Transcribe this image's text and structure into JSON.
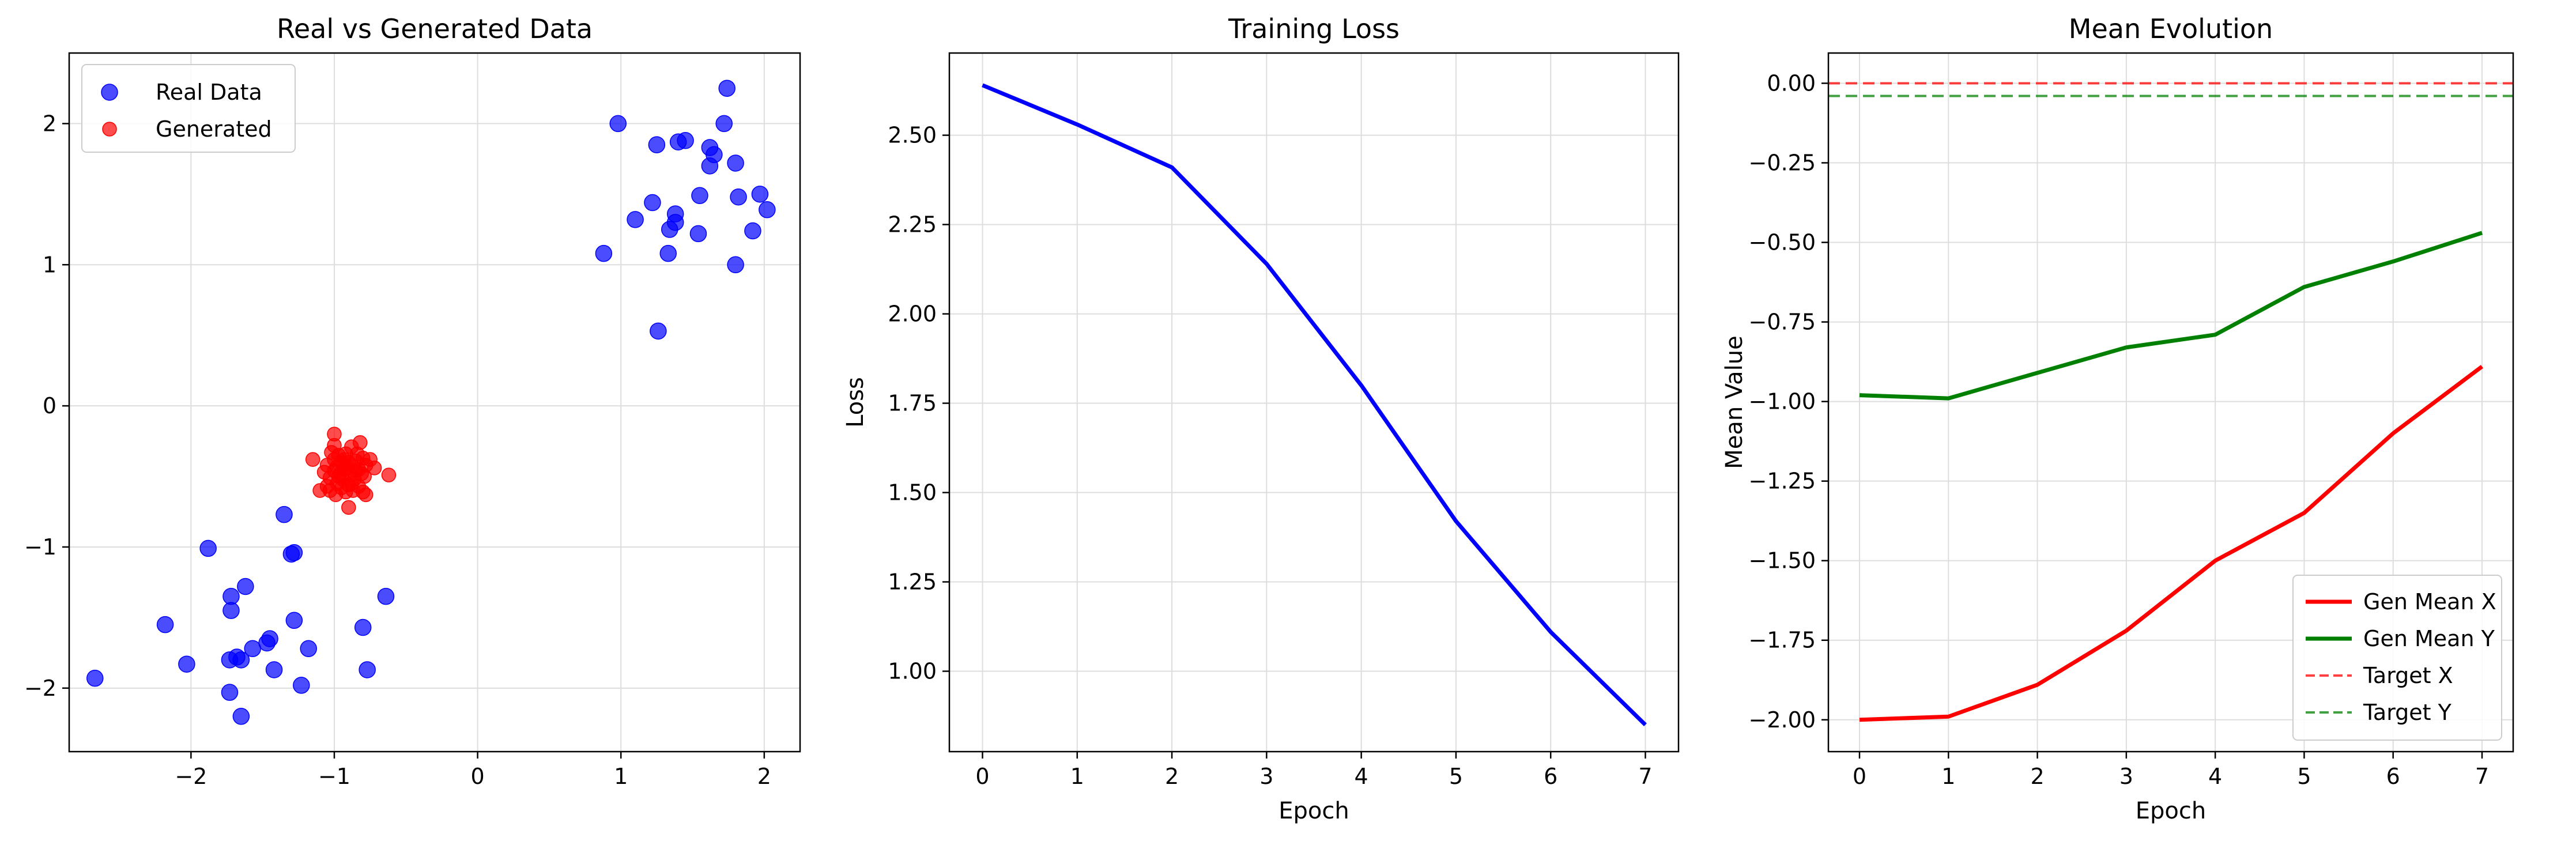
{
  "chart_data": [
    {
      "type": "scatter",
      "title": "Real vs Generated Data",
      "xlabel": "",
      "ylabel": "",
      "xlim": [
        -2.85,
        2.25
      ],
      "ylim": [
        -2.45,
        2.5
      ],
      "xticks": [
        -2,
        -1,
        0,
        1,
        2
      ],
      "yticks": [
        -2,
        -1,
        0,
        1,
        2
      ],
      "xtick_labels": [
        "−2",
        "−1",
        "0",
        "1",
        "2"
      ],
      "ytick_labels": [
        "−2",
        "−1",
        "0",
        "1",
        "2"
      ],
      "grid": true,
      "legend_position": "top-left",
      "series": [
        {
          "name": "Real Data",
          "color": "#0000ff",
          "points": [
            [
              0.98,
              2.0
            ],
            [
              1.74,
              2.25
            ],
            [
              1.72,
              2.0
            ],
            [
              1.4,
              1.87
            ],
            [
              1.45,
              1.88
            ],
            [
              1.25,
              1.85
            ],
            [
              1.62,
              1.83
            ],
            [
              1.65,
              1.78
            ],
            [
              1.62,
              1.7
            ],
            [
              1.8,
              1.72
            ],
            [
              1.22,
              1.44
            ],
            [
              1.38,
              1.36
            ],
            [
              1.55,
              1.49
            ],
            [
              1.82,
              1.48
            ],
            [
              1.97,
              1.5
            ],
            [
              2.02,
              1.39
            ],
            [
              1.1,
              1.32
            ],
            [
              1.38,
              1.3
            ],
            [
              1.34,
              1.25
            ],
            [
              1.54,
              1.22
            ],
            [
              1.92,
              1.24
            ],
            [
              0.88,
              1.08
            ],
            [
              1.33,
              1.08
            ],
            [
              1.8,
              1.0
            ],
            [
              1.26,
              0.53
            ],
            [
              -1.35,
              -0.77
            ],
            [
              -1.88,
              -1.01
            ],
            [
              -1.3,
              -1.05
            ],
            [
              -1.28,
              -1.04
            ],
            [
              -1.62,
              -1.28
            ],
            [
              -1.72,
              -1.35
            ],
            [
              -0.64,
              -1.35
            ],
            [
              -1.72,
              -1.45
            ],
            [
              -2.18,
              -1.55
            ],
            [
              -1.28,
              -1.52
            ],
            [
              -0.8,
              -1.57
            ],
            [
              -1.45,
              -1.65
            ],
            [
              -1.47,
              -1.68
            ],
            [
              -1.57,
              -1.72
            ],
            [
              -1.18,
              -1.72
            ],
            [
              -1.73,
              -1.8
            ],
            [
              -1.68,
              -1.78
            ],
            [
              -1.65,
              -1.8
            ],
            [
              -2.03,
              -1.83
            ],
            [
              -1.42,
              -1.87
            ],
            [
              -0.77,
              -1.87
            ],
            [
              -2.67,
              -1.93
            ],
            [
              -1.23,
              -1.98
            ],
            [
              -1.73,
              -2.03
            ],
            [
              -1.65,
              -2.2
            ]
          ]
        },
        {
          "name": "Generated",
          "color": "#ff0000",
          "points": [
            [
              -1.0,
              -0.2
            ],
            [
              -0.82,
              -0.26
            ],
            [
              -1.0,
              -0.28
            ],
            [
              -0.88,
              -0.29
            ],
            [
              -1.02,
              -0.33
            ],
            [
              -0.92,
              -0.34
            ],
            [
              -0.97,
              -0.35
            ],
            [
              -1.15,
              -0.38
            ],
            [
              -0.8,
              -0.37
            ],
            [
              -0.75,
              -0.38
            ],
            [
              -0.85,
              -0.39
            ],
            [
              -0.9,
              -0.4
            ],
            [
              -0.95,
              -0.4
            ],
            [
              -1.05,
              -0.42
            ],
            [
              -0.98,
              -0.43
            ],
            [
              -0.87,
              -0.43
            ],
            [
              -0.78,
              -0.42
            ],
            [
              -0.93,
              -0.45
            ],
            [
              -1.0,
              -0.46
            ],
            [
              -0.85,
              -0.46
            ],
            [
              -0.72,
              -0.44
            ],
            [
              -1.07,
              -0.47
            ],
            [
              -0.96,
              -0.48
            ],
            [
              -0.89,
              -0.49
            ],
            [
              -0.81,
              -0.48
            ],
            [
              -0.62,
              -0.49
            ],
            [
              -1.03,
              -0.51
            ],
            [
              -0.94,
              -0.52
            ],
            [
              -0.86,
              -0.52
            ],
            [
              -0.79,
              -0.5
            ],
            [
              -0.98,
              -0.55
            ],
            [
              -0.9,
              -0.56
            ],
            [
              -1.05,
              -0.57
            ],
            [
              -0.83,
              -0.57
            ],
            [
              -0.95,
              -0.58
            ],
            [
              -0.87,
              -0.6
            ],
            [
              -1.03,
              -0.6
            ],
            [
              -0.92,
              -0.61
            ],
            [
              -0.8,
              -0.61
            ],
            [
              -1.1,
              -0.6
            ],
            [
              -0.99,
              -0.63
            ],
            [
              -0.78,
              -0.63
            ],
            [
              -0.9,
              -0.72
            ],
            [
              -1.0,
              -0.38
            ],
            [
              -0.84,
              -0.34
            ],
            [
              -0.91,
              -0.44
            ],
            [
              -0.97,
              -0.5
            ],
            [
              -0.88,
              -0.55
            ],
            [
              -0.83,
              -0.45
            ],
            [
              -0.93,
              -0.38
            ]
          ]
        }
      ]
    },
    {
      "type": "line",
      "title": "Training Loss",
      "xlabel": "Epoch",
      "ylabel": "Loss",
      "xlim": [
        -0.35,
        7.35
      ],
      "ylim": [
        0.775,
        2.73
      ],
      "xticks": [
        0,
        1,
        2,
        3,
        4,
        5,
        6,
        7
      ],
      "yticks": [
        1.0,
        1.25,
        1.5,
        1.75,
        2.0,
        2.25,
        2.5
      ],
      "xtick_labels": [
        "0",
        "1",
        "2",
        "3",
        "4",
        "5",
        "6",
        "7"
      ],
      "ytick_labels": [
        "1.00",
        "1.25",
        "1.50",
        "1.75",
        "2.00",
        "2.25",
        "2.50"
      ],
      "grid": true,
      "series": [
        {
          "color": "#0000ff",
          "x": [
            0,
            1,
            2,
            3,
            4,
            5,
            6,
            7
          ],
          "values": [
            2.64,
            2.53,
            2.41,
            2.14,
            1.8,
            1.42,
            1.11,
            0.85
          ]
        }
      ]
    },
    {
      "type": "line",
      "title": "Mean Evolution",
      "xlabel": "Epoch",
      "ylabel": "Mean Value",
      "xlim": [
        -0.35,
        7.35
      ],
      "ylim": [
        -2.1,
        0.095
      ],
      "xticks": [
        0,
        1,
        2,
        3,
        4,
        5,
        6,
        7
      ],
      "yticks": [
        0.0,
        -0.25,
        -0.5,
        -0.75,
        -1.0,
        -1.25,
        -1.5,
        -1.75,
        -2.0
      ],
      "xtick_labels": [
        "0",
        "1",
        "2",
        "3",
        "4",
        "5",
        "6",
        "7"
      ],
      "ytick_labels": [
        "0.00",
        "−0.25",
        "−0.50",
        "−0.75",
        "−1.00",
        "−1.25",
        "−1.50",
        "−1.75",
        "−2.00"
      ],
      "grid": true,
      "legend_position": "bottom-right",
      "series": [
        {
          "name": "Gen Mean X",
          "color": "#ff0000",
          "x": [
            0,
            1,
            2,
            3,
            4,
            5,
            6,
            7
          ],
          "values": [
            -2.0,
            -1.99,
            -1.89,
            -1.72,
            -1.5,
            -1.35,
            -1.1,
            -0.89
          ]
        },
        {
          "name": "Gen Mean Y",
          "color": "#008000",
          "x": [
            0,
            1,
            2,
            3,
            4,
            5,
            6,
            7
          ],
          "values": [
            -0.98,
            -0.99,
            -0.91,
            -0.83,
            -0.79,
            -0.64,
            -0.56,
            -0.47
          ]
        }
      ],
      "reference_lines": [
        {
          "name": "Target X",
          "color": "#ff0000",
          "value": 0.0
        },
        {
          "name": "Target Y",
          "color": "#008000",
          "value": -0.04
        }
      ]
    }
  ]
}
